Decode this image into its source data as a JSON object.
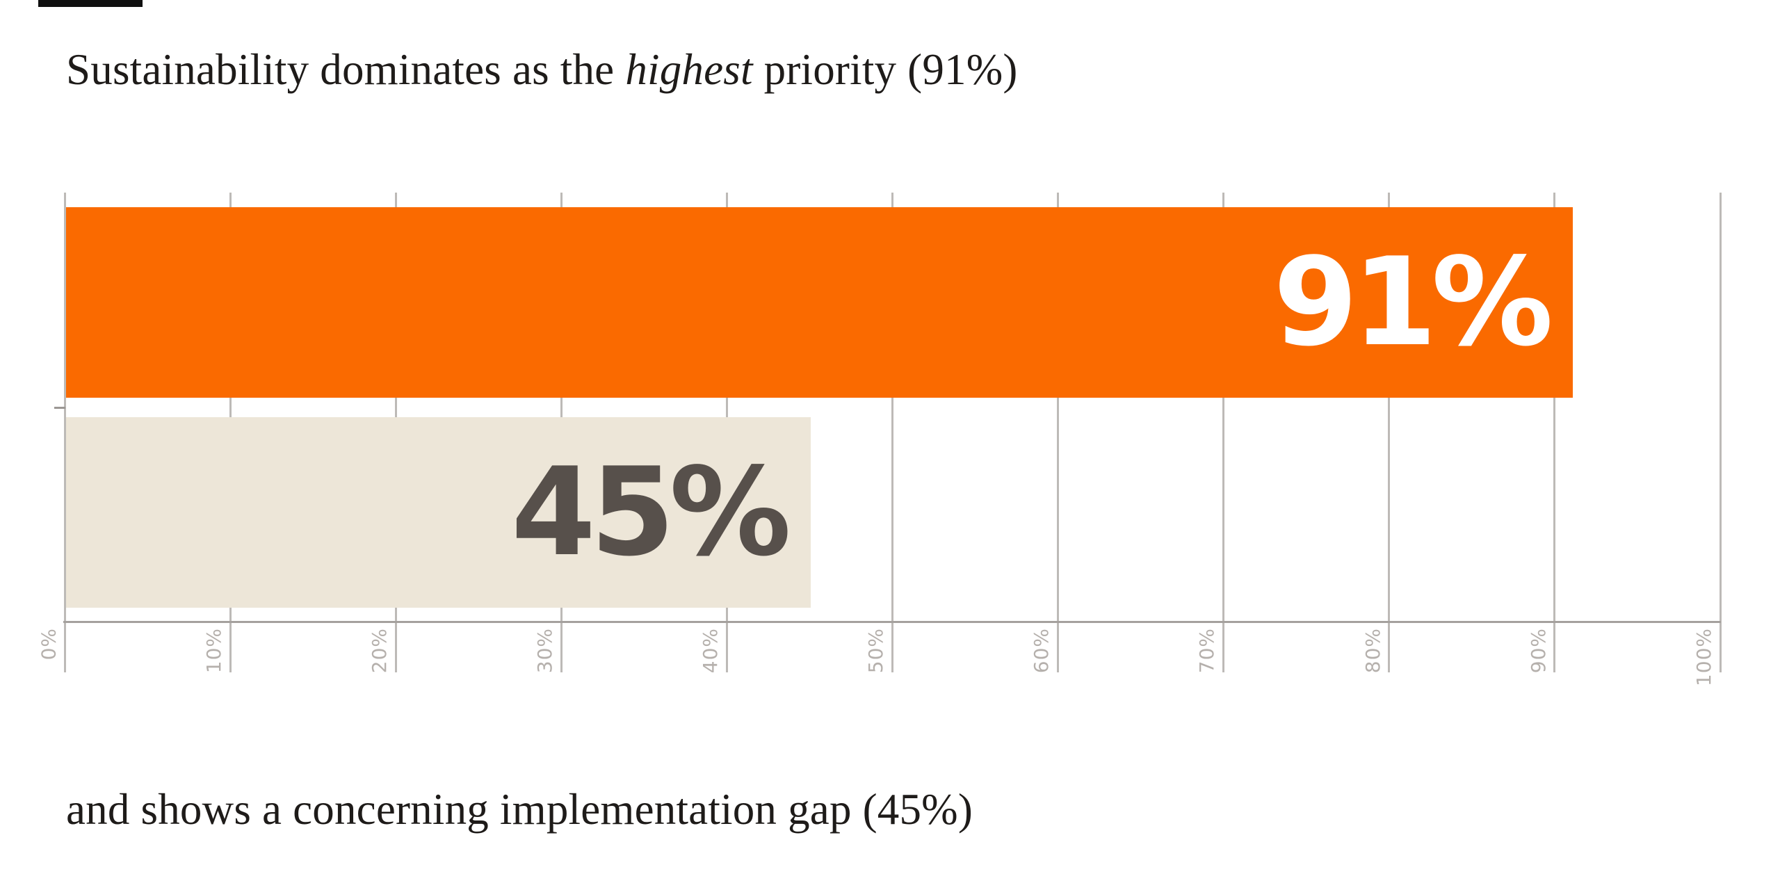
{
  "page": {
    "background": "#FFFFFF"
  },
  "title": {
    "prefix": "Sustainability dominates as the ",
    "emphasis": "highest",
    "suffix": " priority (91%)"
  },
  "caption": {
    "text": "and shows a concerning implementation gap (45%)"
  },
  "chart_data": {
    "type": "bar",
    "orientation": "horizontal",
    "title": "Sustainability dominates as the highest priority (91%)",
    "caption": "and shows a concerning implementation gap (45%)",
    "categories": [
      "",
      ""
    ],
    "values": [
      91,
      45
    ],
    "data_labels": [
      "91%",
      "45%"
    ],
    "bar_colors": [
      "#FA6A00",
      "#EDE6D8"
    ],
    "data_label_colors": [
      "#FFFFFF",
      "#57504B"
    ],
    "xlim": [
      0,
      100
    ],
    "x_ticks": [
      0,
      10,
      20,
      30,
      40,
      50,
      60,
      70,
      80,
      90,
      100
    ],
    "x_tick_labels": [
      "0%",
      "10%",
      "20%",
      "30%",
      "40%",
      "50%",
      "60%",
      "70%",
      "80%",
      "90%",
      "100%"
    ],
    "tick_label_rotation": -90,
    "grid": "vertical",
    "gridline_color": "#BDBAB7",
    "axis_line_color": "#A5A19E",
    "tick_text_color": "#B5B0AC",
    "legend": "none",
    "accent_color": "#FA6A00"
  }
}
